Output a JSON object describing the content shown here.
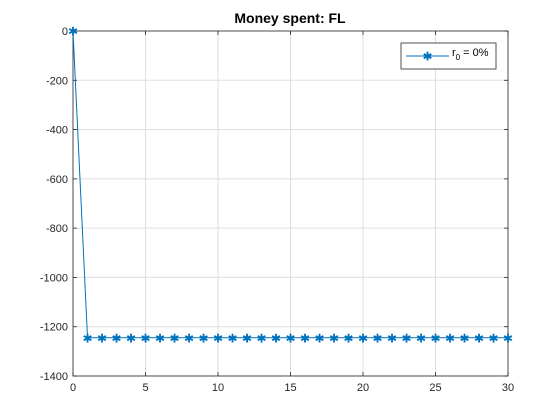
{
  "chart_data": {
    "type": "line",
    "title": "Money spent: FL",
    "xlabel": "",
    "ylabel": "",
    "xlim": [
      0,
      30
    ],
    "ylim": [
      -1400,
      0
    ],
    "xticks": [
      "0",
      "5",
      "10",
      "15",
      "20",
      "25",
      "30"
    ],
    "yticks": [
      "0",
      "-200",
      "-400",
      "-600",
      "-800",
      "-1000",
      "-1200",
      "-1400"
    ],
    "grid": true,
    "legend_position": "top-right",
    "series": [
      {
        "name_base": "r",
        "name_sub": "0",
        "name_rest": " = 0%",
        "color": "#0072BD",
        "marker": "*",
        "x": [
          0,
          1,
          2,
          3,
          4,
          5,
          6,
          7,
          8,
          9,
          10,
          11,
          12,
          13,
          14,
          15,
          16,
          17,
          18,
          19,
          20,
          21,
          22,
          23,
          24,
          25,
          26,
          27,
          28,
          29,
          30
        ],
        "y": [
          0,
          -1245,
          -1245,
          -1245,
          -1245,
          -1245,
          -1245,
          -1245,
          -1245,
          -1245,
          -1245,
          -1245,
          -1245,
          -1245,
          -1245,
          -1245,
          -1245,
          -1245,
          -1245,
          -1245,
          -1245,
          -1245,
          -1245,
          -1245,
          -1245,
          -1245,
          -1245,
          -1245,
          -1245,
          -1245,
          -1245
        ]
      }
    ]
  }
}
